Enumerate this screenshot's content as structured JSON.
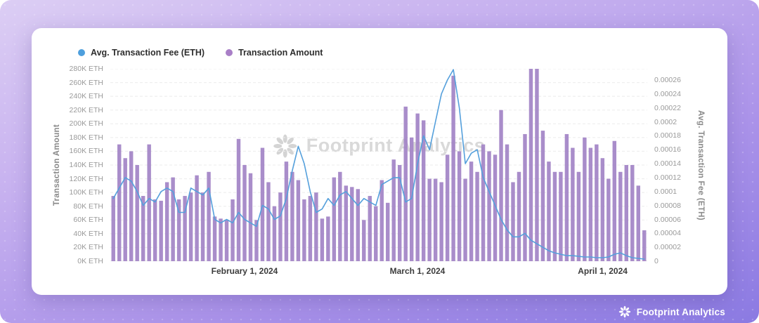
{
  "legend": [
    {
      "label": "Avg. Transaction Fee (ETH)",
      "color": "#4E9FDD"
    },
    {
      "label": "Transaction Amount",
      "color": "#A97FC7"
    }
  ],
  "watermark": {
    "icon": "footprint-flower-icon",
    "text": "Footprint Analytics"
  },
  "footer": {
    "brand": "Footprint Analytics"
  },
  "colors": {
    "bar": "#A283C6",
    "line": "#55A0DC",
    "card": "#FFFFFF",
    "background_top": "#DCCEF4",
    "background_bottom": "#8B7AE2"
  },
  "chart_data": {
    "type": "bar+line",
    "grid": "horizontal-dashed",
    "legend_position": "top-left",
    "x_ticks": [
      {
        "label": "February 1, 2024",
        "pos": 0.25
      },
      {
        "label": "March 1, 2024",
        "pos": 0.572
      },
      {
        "label": "April 1, 2024",
        "pos": 0.917
      }
    ],
    "left_axis": {
      "title": "Transaction Amount",
      "unit": "K ETH",
      "max": 280,
      "ticks": [
        "280K ETH",
        "260K ETH",
        "240K ETH",
        "220K ETH",
        "200K ETH",
        "180K ETH",
        "160K ETH",
        "140K ETH",
        "120K ETH",
        "100K ETH",
        "80K ETH",
        "60K ETH",
        "40K ETH",
        "20K ETH",
        "0K ETH"
      ]
    },
    "right_axis": {
      "title": "Avg. Transaction Fee (ETH)",
      "max": 0.00026,
      "ticks": [
        "0.00026",
        "0.00024",
        "0.00022",
        "0.0002",
        "0.00018",
        "0.00016",
        "0.00014",
        "0.00012",
        "0.0001",
        "0.00008",
        "0.00006",
        "0.00004",
        "0.00002",
        "0"
      ]
    },
    "series": [
      {
        "name": "Transaction Amount",
        "type": "bar",
        "unit": "K ETH",
        "values": [
          95,
          170,
          150,
          160,
          140,
          95,
          170,
          90,
          88,
          115,
          122,
          90,
          95,
          100,
          125,
          100,
          130,
          65,
          62,
          60,
          90,
          178,
          140,
          128,
          60,
          165,
          115,
          80,
          100,
          145,
          130,
          118,
          90,
          95,
          100,
          62,
          65,
          122,
          130,
          110,
          108,
          105,
          60,
          95,
          80,
          118,
          85,
          148,
          140,
          225,
          180,
          215,
          205,
          120,
          120,
          115,
          155,
          270,
          160,
          120,
          145,
          130,
          170,
          160,
          155,
          220,
          170,
          115,
          130,
          185,
          285,
          285,
          190,
          145,
          130,
          130,
          185,
          165,
          130,
          180,
          165,
          170,
          150,
          120,
          175,
          130,
          140,
          140,
          110,
          45
        ]
      },
      {
        "name": "Avg. Transaction Fee (ETH)",
        "type": "line",
        "unit": "ETH",
        "values": [
          9e-05,
          0.000105,
          0.00012,
          0.000115,
          0.0001,
          8e-05,
          9e-05,
          8.5e-05,
          0.0001,
          0.000105,
          0.0001,
          7e-05,
          7e-05,
          0.000105,
          0.0001,
          9.5e-05,
          0.000105,
          6e-05,
          5.5e-05,
          6e-05,
          5.5e-05,
          7e-05,
          6e-05,
          5.5e-05,
          5e-05,
          8e-05,
          7.5e-05,
          6e-05,
          6.5e-05,
          9e-05,
          0.00013,
          0.000165,
          0.00014,
          0.0001,
          7e-05,
          7.5e-05,
          9e-05,
          8e-05,
          9.5e-05,
          0.0001,
          9e-05,
          8e-05,
          9e-05,
          8.5e-05,
          8e-05,
          0.00011,
          0.000115,
          0.00012,
          0.00012,
          8.5e-05,
          9e-05,
          0.00014,
          0.00018,
          0.00016,
          0.0002,
          0.00024,
          0.00026,
          0.000275,
          0.00022,
          0.00014,
          0.000155,
          0.00016,
          0.00012,
          0.0001,
          8e-05,
          6e-05,
          4.5e-05,
          3.5e-05,
          3.5e-05,
          4e-05,
          3e-05,
          2.5e-05,
          2e-05,
          1.5e-05,
          1.2e-05,
          1e-05,
          8e-06,
          8e-06,
          7e-06,
          6e-06,
          6e-06,
          5e-06,
          5e-06,
          6e-06,
          1e-05,
          1.2e-05,
          8e-06,
          5e-06,
          4e-06,
          3e-06
        ]
      }
    ]
  }
}
